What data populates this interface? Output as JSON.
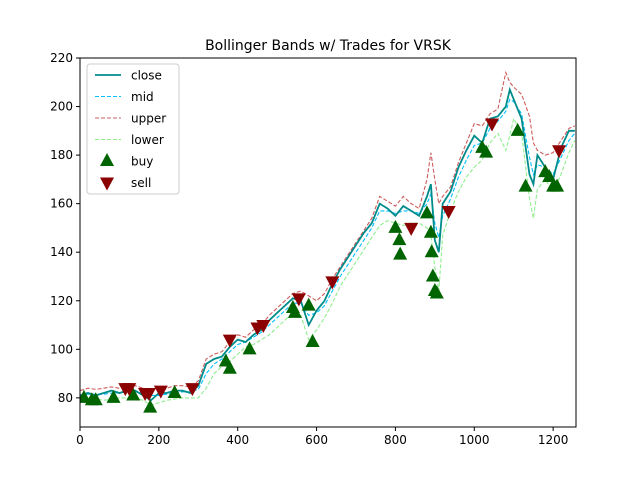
{
  "chart_data": {
    "type": "line",
    "title": "Bollinger Bands w/ Trades for VRSK",
    "xlabel": "",
    "ylabel": "",
    "xlim": [
      0,
      1258
    ],
    "ylim": [
      68,
      220
    ],
    "xticks": [
      0,
      200,
      400,
      600,
      800,
      1000,
      1200
    ],
    "yticks": [
      80,
      100,
      120,
      140,
      160,
      180,
      200,
      220
    ],
    "grid": false,
    "legend_position": "upper left",
    "colors": {
      "close": "#008b8b",
      "mid": "#00bfff",
      "upper": "#cd5c5c",
      "lower": "#90ee90",
      "buy": "#006400",
      "sell": "#8b0000"
    },
    "series": [
      {
        "name": "close",
        "style": "solid",
        "x": [
          0,
          20,
          40,
          60,
          80,
          100,
          120,
          140,
          160,
          180,
          200,
          220,
          240,
          260,
          280,
          300,
          320,
          340,
          360,
          380,
          400,
          420,
          440,
          460,
          480,
          500,
          520,
          540,
          560,
          580,
          600,
          620,
          640,
          660,
          680,
          700,
          720,
          740,
          760,
          780,
          800,
          820,
          840,
          860,
          880,
          890,
          900,
          910,
          920,
          940,
          960,
          980,
          1000,
          1020,
          1040,
          1060,
          1080,
          1090,
          1100,
          1120,
          1140,
          1150,
          1160,
          1180,
          1200,
          1220,
          1240,
          1255
        ],
        "values": [
          81,
          82,
          81,
          82,
          83,
          82,
          83,
          83,
          81,
          79,
          82,
          82,
          83,
          83,
          82,
          85,
          94,
          96,
          97,
          101,
          104,
          103,
          106,
          108,
          112,
          115,
          118,
          121,
          120,
          110,
          116,
          120,
          127,
          133,
          138,
          143,
          148,
          152,
          160,
          158,
          155,
          159,
          157,
          155,
          163,
          168,
          145,
          140,
          160,
          165,
          175,
          182,
          188,
          185,
          195,
          196,
          200,
          207,
          203,
          195,
          172,
          168,
          180,
          175,
          170,
          183,
          190,
          190
        ]
      },
      {
        "name": "mid",
        "style": "dashed",
        "x": [
          0,
          20,
          40,
          60,
          80,
          100,
          120,
          140,
          160,
          180,
          200,
          220,
          240,
          260,
          280,
          300,
          320,
          340,
          360,
          380,
          400,
          420,
          440,
          460,
          480,
          500,
          520,
          540,
          560,
          580,
          600,
          620,
          640,
          660,
          680,
          700,
          720,
          740,
          760,
          780,
          800,
          820,
          840,
          860,
          880,
          890,
          900,
          910,
          920,
          940,
          960,
          980,
          1000,
          1020,
          1040,
          1060,
          1080,
          1090,
          1100,
          1120,
          1140,
          1150,
          1160,
          1180,
          1200,
          1220,
          1240,
          1255
        ],
        "values": [
          81,
          81.5,
          81.5,
          81.5,
          82,
          82,
          82.5,
          82.5,
          82,
          81,
          81,
          81.5,
          82,
          82.5,
          82.5,
          83.5,
          90,
          94,
          96,
          99,
          102,
          103,
          105,
          107,
          110,
          113,
          116,
          119,
          119,
          114,
          115,
          118,
          124,
          130,
          135,
          140,
          145,
          150,
          157,
          157,
          156,
          157,
          157,
          156,
          160,
          164,
          152,
          146,
          155,
          162,
          171,
          178,
          184,
          185,
          191,
          194,
          198,
          203,
          202,
          197,
          179,
          172,
          176,
          175,
          172,
          179,
          186,
          189
        ]
      },
      {
        "name": "upper",
        "style": "dashed",
        "x": [
          0,
          20,
          40,
          60,
          80,
          100,
          120,
          140,
          160,
          180,
          200,
          220,
          240,
          260,
          280,
          300,
          320,
          340,
          360,
          380,
          400,
          420,
          440,
          460,
          480,
          500,
          520,
          540,
          560,
          580,
          600,
          620,
          640,
          660,
          680,
          700,
          720,
          740,
          760,
          780,
          800,
          820,
          840,
          860,
          880,
          890,
          900,
          910,
          920,
          940,
          960,
          980,
          1000,
          1020,
          1040,
          1060,
          1080,
          1090,
          1100,
          1120,
          1140,
          1150,
          1160,
          1180,
          1200,
          1220,
          1240,
          1255
        ],
        "values": [
          83,
          84,
          83.5,
          84,
          84.5,
          84,
          85,
          85,
          84,
          83,
          84,
          84,
          85,
          85,
          84.5,
          87,
          96,
          98,
          99,
          103,
          106,
          105,
          108,
          110,
          114,
          117,
          120,
          123,
          124,
          122,
          120,
          123,
          129,
          134,
          139,
          144,
          149,
          154,
          163,
          161,
          159,
          163,
          160,
          158,
          170,
          181,
          170,
          160,
          163,
          167,
          177,
          185,
          193,
          192,
          197,
          199,
          214,
          210,
          208,
          205,
          196,
          185,
          182,
          180,
          181,
          186,
          191,
          192
        ]
      },
      {
        "name": "lower",
        "style": "dashed",
        "x": [
          0,
          20,
          40,
          60,
          80,
          100,
          120,
          140,
          160,
          180,
          200,
          220,
          240,
          260,
          280,
          300,
          320,
          340,
          360,
          380,
          400,
          420,
          440,
          460,
          480,
          500,
          520,
          540,
          560,
          580,
          600,
          620,
          640,
          660,
          680,
          700,
          720,
          740,
          760,
          780,
          800,
          820,
          840,
          860,
          880,
          890,
          900,
          910,
          920,
          940,
          960,
          980,
          1000,
          1020,
          1040,
          1060,
          1080,
          1090,
          1100,
          1120,
          1140,
          1150,
          1160,
          1180,
          1200,
          1220,
          1240,
          1255
        ],
        "values": [
          79,
          79,
          79.5,
          79,
          79.5,
          80,
          80,
          80,
          79,
          77,
          78,
          79,
          79.5,
          80,
          80,
          80,
          84,
          90,
          93,
          95,
          98,
          101,
          102,
          104,
          106,
          109,
          112,
          115,
          114,
          104,
          108,
          113,
          119,
          126,
          131,
          136,
          141,
          146,
          151,
          153,
          152,
          151,
          152,
          152,
          150,
          147,
          134,
          124,
          147,
          157,
          165,
          171,
          175,
          178,
          185,
          189,
          182,
          188,
          195,
          189,
          162,
          154,
          166,
          170,
          165,
          172,
          181,
          186
        ]
      }
    ],
    "buy_signals": {
      "name": "buy",
      "x": [
        10,
        30,
        40,
        85,
        135,
        178,
        240,
        370,
        380,
        430,
        540,
        545,
        580,
        590,
        800,
        810,
        812,
        880,
        890,
        892,
        895,
        900,
        905,
        1020,
        1030,
        1110,
        1130,
        1180,
        1190,
        1200,
        1210
      ],
      "y": [
        80,
        79,
        79,
        80,
        81,
        76,
        82,
        95,
        92,
        100,
        117,
        115,
        118,
        103,
        150,
        145,
        139,
        156,
        148,
        140,
        130,
        124,
        123,
        183,
        181,
        190,
        167,
        173,
        171,
        167,
        167
      ]
    },
    "sell_signals": {
      "name": "sell",
      "x": [
        115,
        125,
        165,
        175,
        205,
        285,
        380,
        450,
        465,
        555,
        640,
        840,
        935,
        1045,
        1215
      ],
      "y": [
        84,
        84,
        82,
        82,
        83,
        84,
        104,
        109,
        110,
        121,
        128,
        150,
        157,
        193,
        182
      ]
    }
  },
  "legend": {
    "items": [
      "close",
      "mid",
      "upper",
      "lower",
      "buy",
      "sell"
    ]
  }
}
